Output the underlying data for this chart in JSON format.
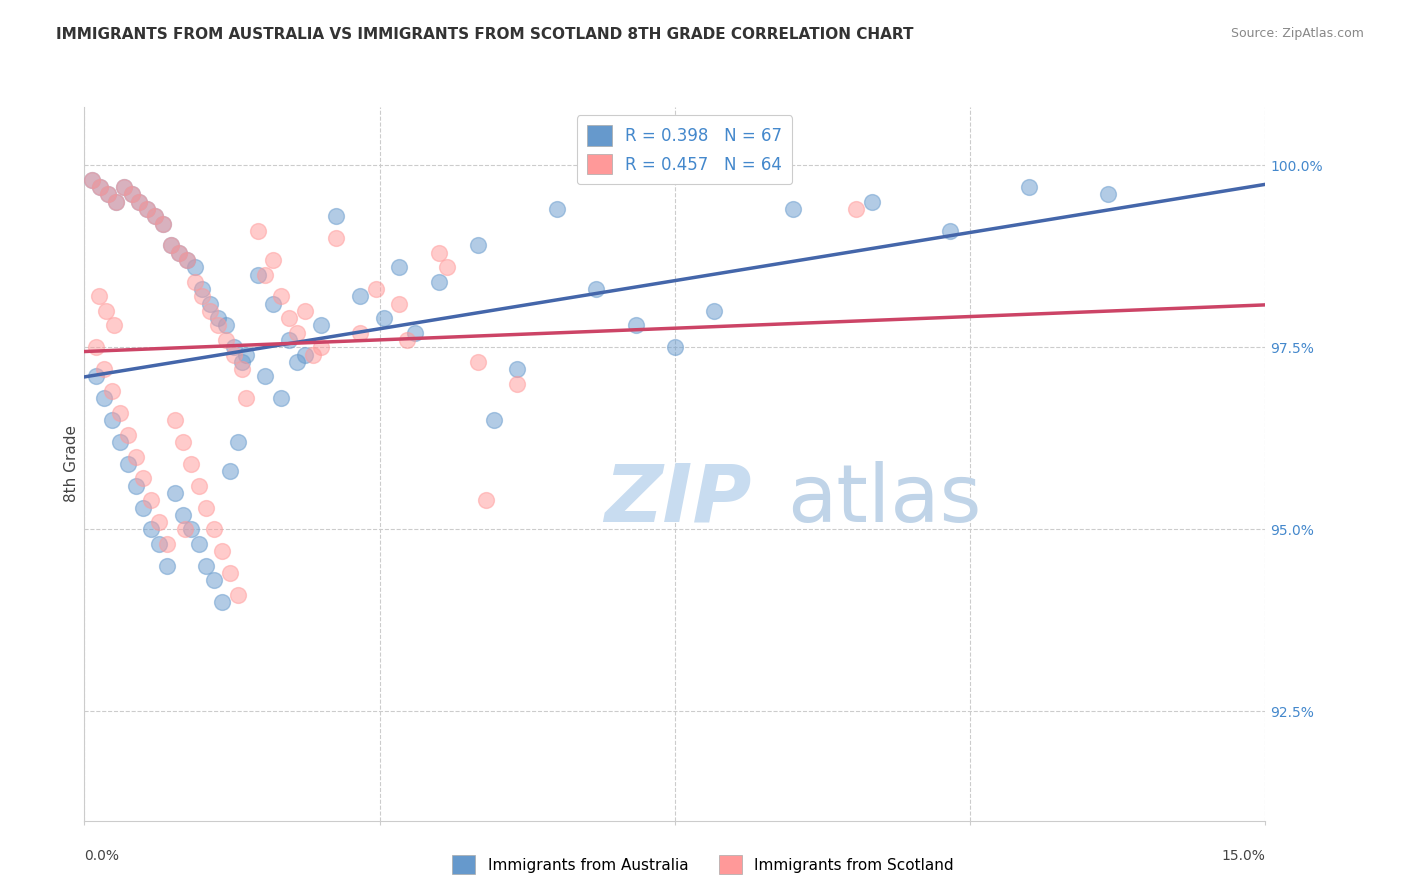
{
  "title": "IMMIGRANTS FROM AUSTRALIA VS IMMIGRANTS FROM SCOTLAND 8TH GRADE CORRELATION CHART",
  "source": "Source: ZipAtlas.com",
  "ylabel": "8th Grade",
  "xmin": 0.0,
  "xmax": 15.0,
  "ymin": 91.0,
  "ymax": 100.8,
  "y_ticks": [
    92.5,
    95.0,
    97.5,
    100.0
  ],
  "x_ticks": [
    0.0,
    3.75,
    7.5,
    11.25,
    15.0
  ],
  "legend_blue": "R = 0.398   N = 67",
  "legend_pink": "R = 0.457   N = 64",
  "legend_label_blue": "Immigrants from Australia",
  "legend_label_pink": "Immigrants from Scotland",
  "color_blue": "#6699CC",
  "color_pink": "#FF9999",
  "color_blue_line": "#4466AA",
  "color_pink_line": "#CC4466",
  "color_right_axis": "#4488CC",
  "background": "#FFFFFF",
  "scatter_blue_x": [
    0.1,
    0.2,
    0.3,
    0.4,
    0.5,
    0.6,
    0.7,
    0.8,
    0.9,
    1.0,
    1.1,
    1.2,
    1.3,
    1.4,
    1.5,
    1.6,
    1.7,
    1.8,
    1.9,
    2.0,
    2.2,
    2.4,
    2.6,
    2.8,
    3.0,
    3.5,
    4.0,
    4.5,
    5.0,
    5.5,
    6.0,
    6.5,
    7.0,
    7.5,
    8.0,
    9.0,
    10.0,
    11.0,
    12.0,
    13.0,
    0.15,
    0.25,
    0.35,
    0.45,
    0.55,
    0.65,
    0.75,
    0.85,
    0.95,
    1.05,
    1.15,
    1.25,
    1.35,
    1.45,
    1.55,
    1.65,
    1.75,
    1.85,
    1.95,
    2.05,
    2.3,
    2.5,
    2.7,
    3.2,
    3.8,
    4.2,
    5.2
  ],
  "scatter_blue_y": [
    99.8,
    99.7,
    99.6,
    99.5,
    99.7,
    99.6,
    99.5,
    99.4,
    99.3,
    99.2,
    98.9,
    98.8,
    98.7,
    98.6,
    98.3,
    98.1,
    97.9,
    97.8,
    97.5,
    97.3,
    98.5,
    98.1,
    97.6,
    97.4,
    97.8,
    98.2,
    98.6,
    98.4,
    98.9,
    97.2,
    99.4,
    98.3,
    97.8,
    97.5,
    98.0,
    99.4,
    99.5,
    99.1,
    99.7,
    99.6,
    97.1,
    96.8,
    96.5,
    96.2,
    95.9,
    95.6,
    95.3,
    95.0,
    94.8,
    94.5,
    95.5,
    95.2,
    95.0,
    94.8,
    94.5,
    94.3,
    94.0,
    95.8,
    96.2,
    97.4,
    97.1,
    96.8,
    97.3,
    99.3,
    97.9,
    97.7,
    96.5
  ],
  "scatter_pink_x": [
    0.1,
    0.2,
    0.3,
    0.4,
    0.5,
    0.6,
    0.7,
    0.8,
    0.9,
    1.0,
    1.1,
    1.2,
    1.3,
    1.4,
    1.5,
    1.6,
    1.7,
    1.8,
    1.9,
    2.0,
    2.2,
    2.4,
    2.6,
    2.8,
    3.0,
    3.5,
    4.0,
    4.5,
    5.0,
    5.5,
    0.15,
    0.25,
    0.35,
    0.45,
    0.55,
    0.65,
    0.75,
    0.85,
    0.95,
    1.05,
    1.15,
    1.25,
    1.35,
    1.45,
    1.55,
    1.65,
    1.75,
    1.85,
    1.95,
    2.05,
    2.3,
    2.5,
    2.7,
    2.9,
    3.2,
    3.7,
    4.1,
    4.6,
    5.1,
    9.8,
    0.18,
    0.28,
    0.38,
    1.28
  ],
  "scatter_pink_y": [
    99.8,
    99.7,
    99.6,
    99.5,
    99.7,
    99.6,
    99.5,
    99.4,
    99.3,
    99.2,
    98.9,
    98.8,
    98.7,
    98.4,
    98.2,
    98.0,
    97.8,
    97.6,
    97.4,
    97.2,
    99.1,
    98.7,
    97.9,
    98.0,
    97.5,
    97.7,
    98.1,
    98.8,
    97.3,
    97.0,
    97.5,
    97.2,
    96.9,
    96.6,
    96.3,
    96.0,
    95.7,
    95.4,
    95.1,
    94.8,
    96.5,
    96.2,
    95.9,
    95.6,
    95.3,
    95.0,
    94.7,
    94.4,
    94.1,
    96.8,
    98.5,
    98.2,
    97.7,
    97.4,
    99.0,
    98.3,
    97.6,
    98.6,
    95.4,
    99.4,
    98.2,
    98.0,
    97.8,
    95.0
  ]
}
